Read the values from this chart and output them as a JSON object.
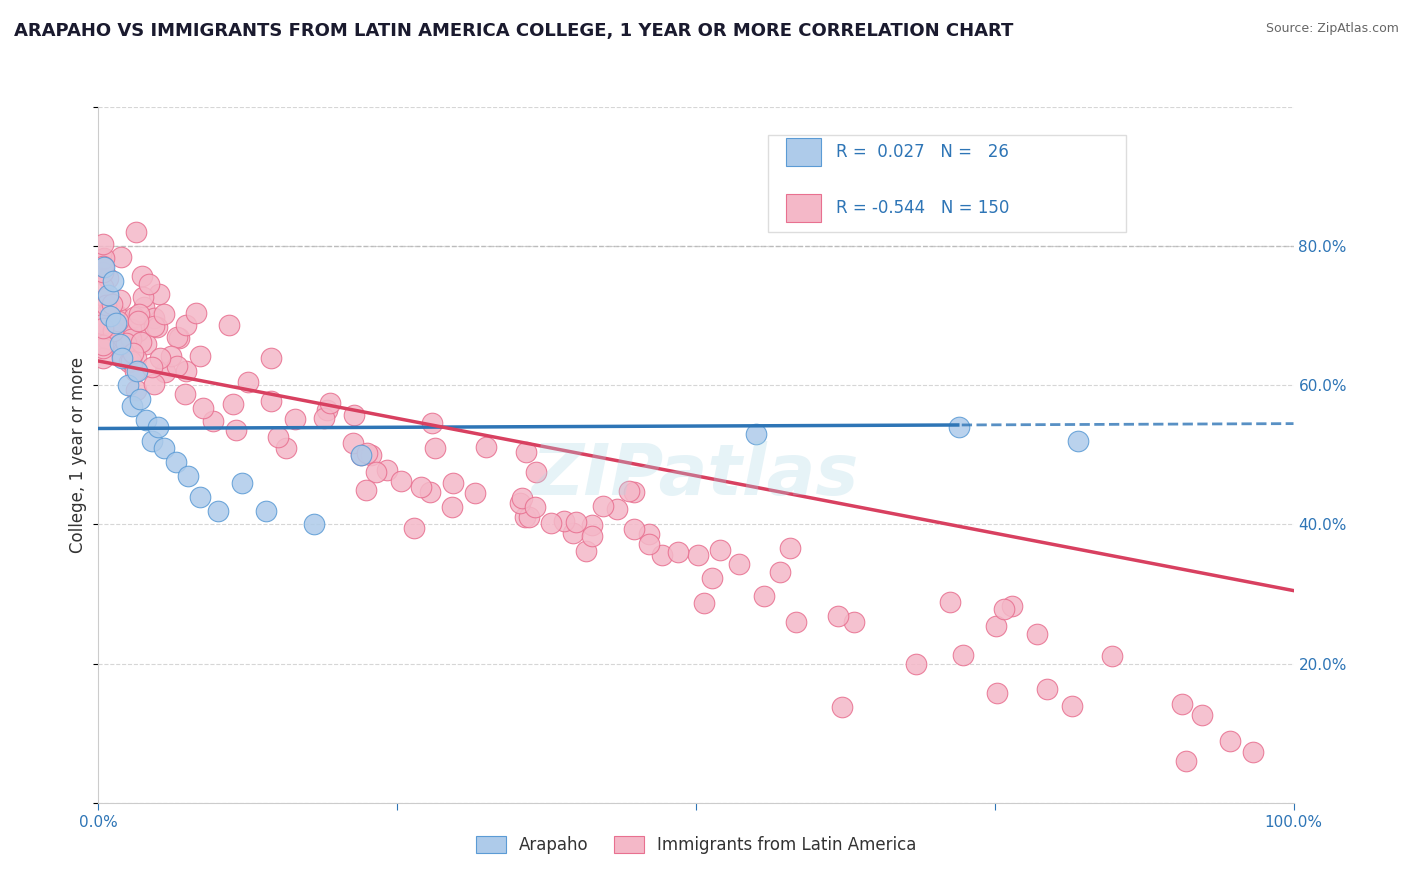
{
  "title": "ARAPAHO VS IMMIGRANTS FROM LATIN AMERICA COLLEGE, 1 YEAR OR MORE CORRELATION CHART",
  "source": "Source: ZipAtlas.com",
  "ylabel": "College, 1 year or more",
  "xlim": [
    0.0,
    1.0
  ],
  "ylim": [
    0.0,
    1.0
  ],
  "arapaho_R": 0.027,
  "arapaho_N": 26,
  "latin_R": -0.544,
  "latin_N": 150,
  "blue_dot_face": "#AECBEA",
  "blue_dot_edge": "#5B9BD5",
  "pink_dot_face": "#F4B8C8",
  "pink_dot_edge": "#E87090",
  "trend_blue": "#2E75B6",
  "trend_pink": "#D84060",
  "dashed_color": "#B0B0B0",
  "watermark": "ZIPatlas",
  "watermark_color": "#ADD8E6",
  "legend_text_color": "#2E75B6",
  "title_color": "#1A1A2E",
  "source_color": "#666666",
  "background_plot": "#FFFFFF",
  "grid_color": "#CCCCCC",
  "legend_box_color": "#DDDDDD",
  "blue_line_start_y": 0.538,
  "blue_line_end_y": 0.545,
  "blue_line_solid_end_x": 0.72,
  "pink_line_start_x": 0.0,
  "pink_line_start_y": 0.635,
  "pink_line_end_x": 1.0,
  "pink_line_end_y": 0.305
}
